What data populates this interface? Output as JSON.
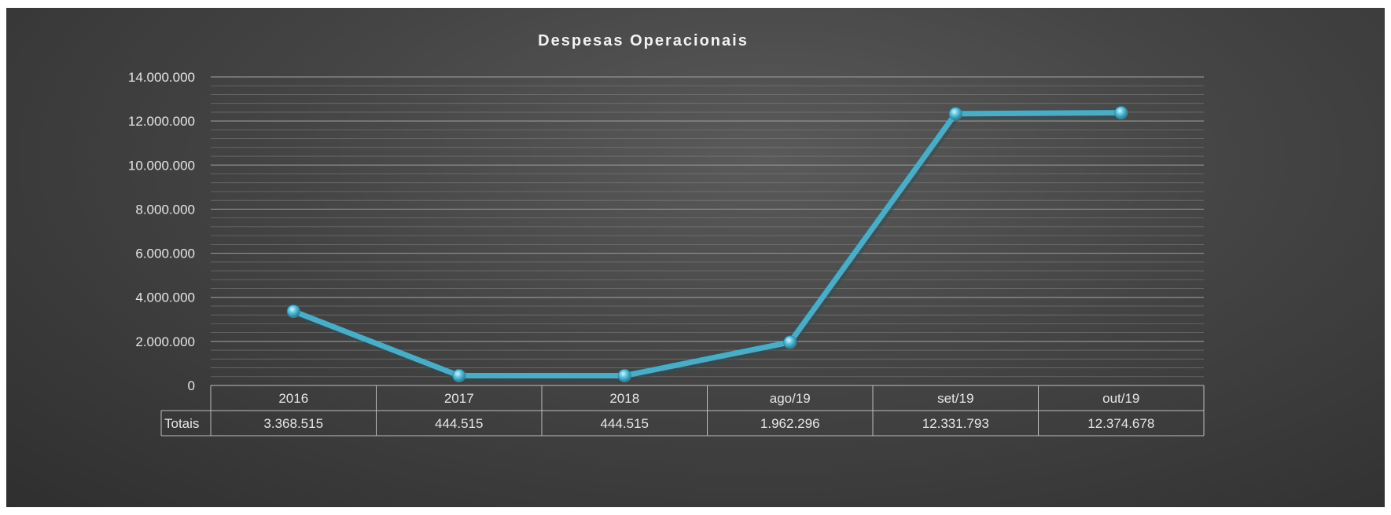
{
  "chart_data": {
    "type": "line",
    "title": "Despesas Operacionais",
    "categories": [
      "2016",
      "2017",
      "2018",
      "ago/19",
      "set/19",
      "out/19"
    ],
    "series": [
      {
        "name": "Totais",
        "values": [
          3368515,
          444515,
          444515,
          1962296,
          12331793,
          12374678
        ],
        "value_labels": [
          "3.368.515",
          "444.515",
          "444.515",
          "1.962.296",
          "12.331.793",
          "12.374.678"
        ]
      }
    ],
    "ylim": [
      0,
      14000000
    ],
    "y_ticks": [
      0,
      2000000,
      4000000,
      6000000,
      8000000,
      10000000,
      12000000,
      14000000
    ],
    "y_tick_labels": [
      "0",
      "2.000.000",
      "4.000.000",
      "6.000.000",
      "8.000.000",
      "10.000.000",
      "12.000.000",
      "14.000.000"
    ],
    "minor_grid_step": 400000,
    "grid": true,
    "data_table": true,
    "xlabel": "",
    "ylabel": "",
    "colors": {
      "line": "#4bacc6",
      "marker": "#5bc0dc",
      "text": "#e6e6e6",
      "grid": "#8a8a8a",
      "title": "#f2f2f2"
    }
  }
}
